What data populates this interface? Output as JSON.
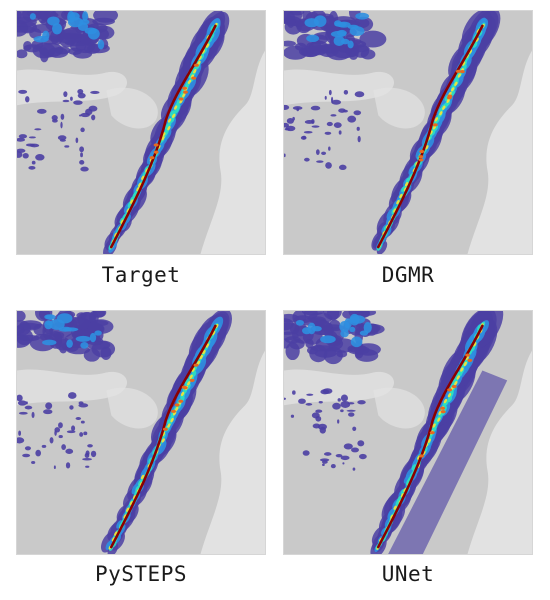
{
  "panels": [
    {
      "id": "target",
      "label": "Target"
    },
    {
      "id": "dgmr",
      "label": "DGMR"
    },
    {
      "id": "pysteps",
      "label": "PySTEPS"
    },
    {
      "id": "unet",
      "label": "UNet"
    }
  ],
  "colors": {
    "land": "#c9c9c9",
    "sea": "#e2e2e2",
    "light_rain": "#4b3fa3",
    "moderate_rain": "#2f8fe0",
    "heavy_rain": "#2ee0c0",
    "very_heavy_rain": "#f0e33a",
    "extreme_rain": "#e86a1f",
    "max_rain": "#8b0000"
  }
}
